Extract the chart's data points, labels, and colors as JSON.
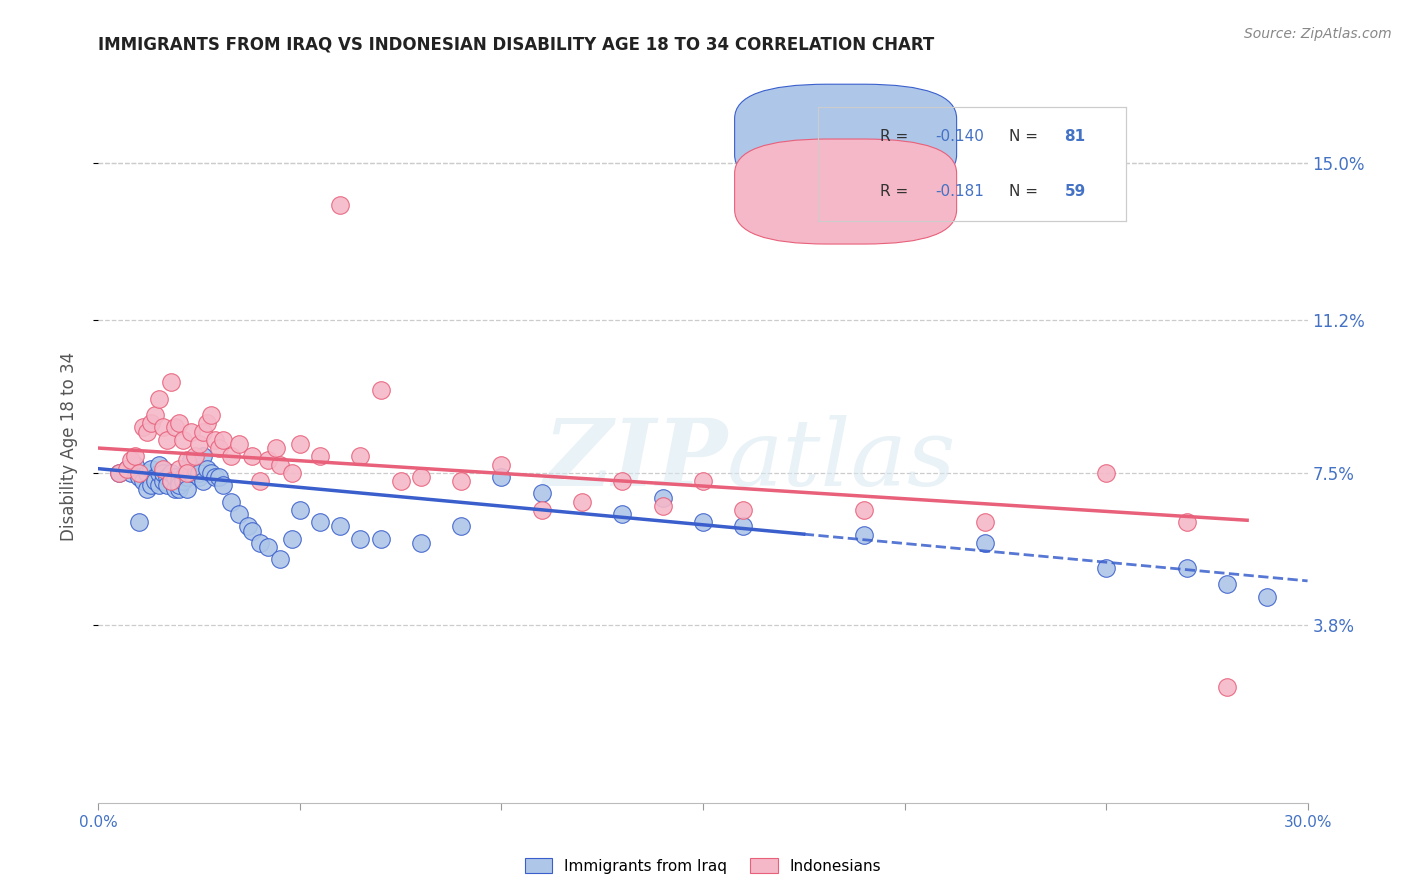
{
  "title": "IMMIGRANTS FROM IRAQ VS INDONESIAN DISABILITY AGE 18 TO 34 CORRELATION CHART",
  "source": "Source: ZipAtlas.com",
  "ylabel": "Disability Age 18 to 34",
  "ytick_labels": [
    "3.8%",
    "7.5%",
    "11.2%",
    "15.0%"
  ],
  "ytick_values": [
    0.038,
    0.075,
    0.112,
    0.15
  ],
  "xlim": [
    0.0,
    0.3
  ],
  "ylim": [
    -0.005,
    0.168
  ],
  "legend_r1": "-0.140",
  "legend_n1": "81",
  "legend_r2": "-0.181",
  "legend_n2": "59",
  "color_iraq": "#aec6e8",
  "color_indonesia": "#f5b8c8",
  "color_iraq_line": "#3a5fcd",
  "color_indonesia_line": "#e8607a",
  "color_blue": "#4472c4",
  "color_title": "#222222",
  "watermark_line1": "ZIP",
  "watermark_line2": "atlas",
  "iraq_x": [
    0.005,
    0.007,
    0.008,
    0.009,
    0.01,
    0.01,
    0.011,
    0.012,
    0.012,
    0.013,
    0.013,
    0.014,
    0.014,
    0.015,
    0.015,
    0.015,
    0.016,
    0.016,
    0.017,
    0.017,
    0.018,
    0.018,
    0.019,
    0.019,
    0.02,
    0.02,
    0.02,
    0.021,
    0.021,
    0.022,
    0.022,
    0.022,
    0.023,
    0.023,
    0.024,
    0.025,
    0.025,
    0.026,
    0.026,
    0.027,
    0.028,
    0.029,
    0.03,
    0.031,
    0.033,
    0.035,
    0.037,
    0.038,
    0.04,
    0.042,
    0.045,
    0.048,
    0.05,
    0.055,
    0.06,
    0.065,
    0.07,
    0.08,
    0.09,
    0.1,
    0.11,
    0.13,
    0.14,
    0.15,
    0.16,
    0.19,
    0.22,
    0.25,
    0.27,
    0.28,
    0.29
  ],
  "iraq_y": [
    0.075,
    0.076,
    0.075,
    0.077,
    0.074,
    0.063,
    0.073,
    0.071,
    0.075,
    0.072,
    0.076,
    0.074,
    0.073,
    0.072,
    0.075,
    0.077,
    0.073,
    0.075,
    0.074,
    0.072,
    0.073,
    0.075,
    0.071,
    0.074,
    0.073,
    0.071,
    0.072,
    0.074,
    0.073,
    0.074,
    0.071,
    0.076,
    0.075,
    0.078,
    0.076,
    0.074,
    0.075,
    0.073,
    0.079,
    0.076,
    0.075,
    0.074,
    0.074,
    0.072,
    0.068,
    0.065,
    0.062,
    0.061,
    0.058,
    0.057,
    0.054,
    0.059,
    0.066,
    0.063,
    0.062,
    0.059,
    0.059,
    0.058,
    0.062,
    0.074,
    0.07,
    0.065,
    0.069,
    0.063,
    0.062,
    0.06,
    0.058,
    0.052,
    0.052,
    0.048,
    0.045
  ],
  "indonesia_x": [
    0.005,
    0.007,
    0.008,
    0.009,
    0.01,
    0.011,
    0.012,
    0.013,
    0.014,
    0.015,
    0.016,
    0.016,
    0.017,
    0.018,
    0.018,
    0.019,
    0.02,
    0.02,
    0.021,
    0.022,
    0.022,
    0.023,
    0.024,
    0.025,
    0.026,
    0.027,
    0.028,
    0.029,
    0.03,
    0.031,
    0.033,
    0.035,
    0.038,
    0.04,
    0.042,
    0.044,
    0.045,
    0.048,
    0.05,
    0.055,
    0.06,
    0.065,
    0.07,
    0.075,
    0.08,
    0.09,
    0.1,
    0.11,
    0.12,
    0.13,
    0.14,
    0.15,
    0.16,
    0.19,
    0.22,
    0.25,
    0.27,
    0.28
  ],
  "indonesia_y": [
    0.075,
    0.076,
    0.078,
    0.079,
    0.075,
    0.086,
    0.085,
    0.087,
    0.089,
    0.093,
    0.086,
    0.076,
    0.083,
    0.097,
    0.073,
    0.086,
    0.087,
    0.076,
    0.083,
    0.078,
    0.075,
    0.085,
    0.079,
    0.082,
    0.085,
    0.087,
    0.089,
    0.083,
    0.081,
    0.083,
    0.079,
    0.082,
    0.079,
    0.073,
    0.078,
    0.081,
    0.077,
    0.075,
    0.082,
    0.079,
    0.14,
    0.079,
    0.095,
    0.073,
    0.074,
    0.073,
    0.077,
    0.066,
    0.068,
    0.073,
    0.067,
    0.073,
    0.066,
    0.066,
    0.063,
    0.075,
    0.063,
    0.023
  ],
  "trend_iraq_x0": 0.0,
  "trend_iraq_x_solid_end": 0.175,
  "trend_iraq_x_dash_start": 0.175,
  "trend_iraq_x1": 0.3,
  "trend_iraq_y0": 0.076,
  "trend_iraq_y1": 0.0488,
  "trend_indo_x0": 0.0,
  "trend_indo_x1": 0.285,
  "trend_indo_y0": 0.081,
  "trend_indo_y1": 0.0635
}
